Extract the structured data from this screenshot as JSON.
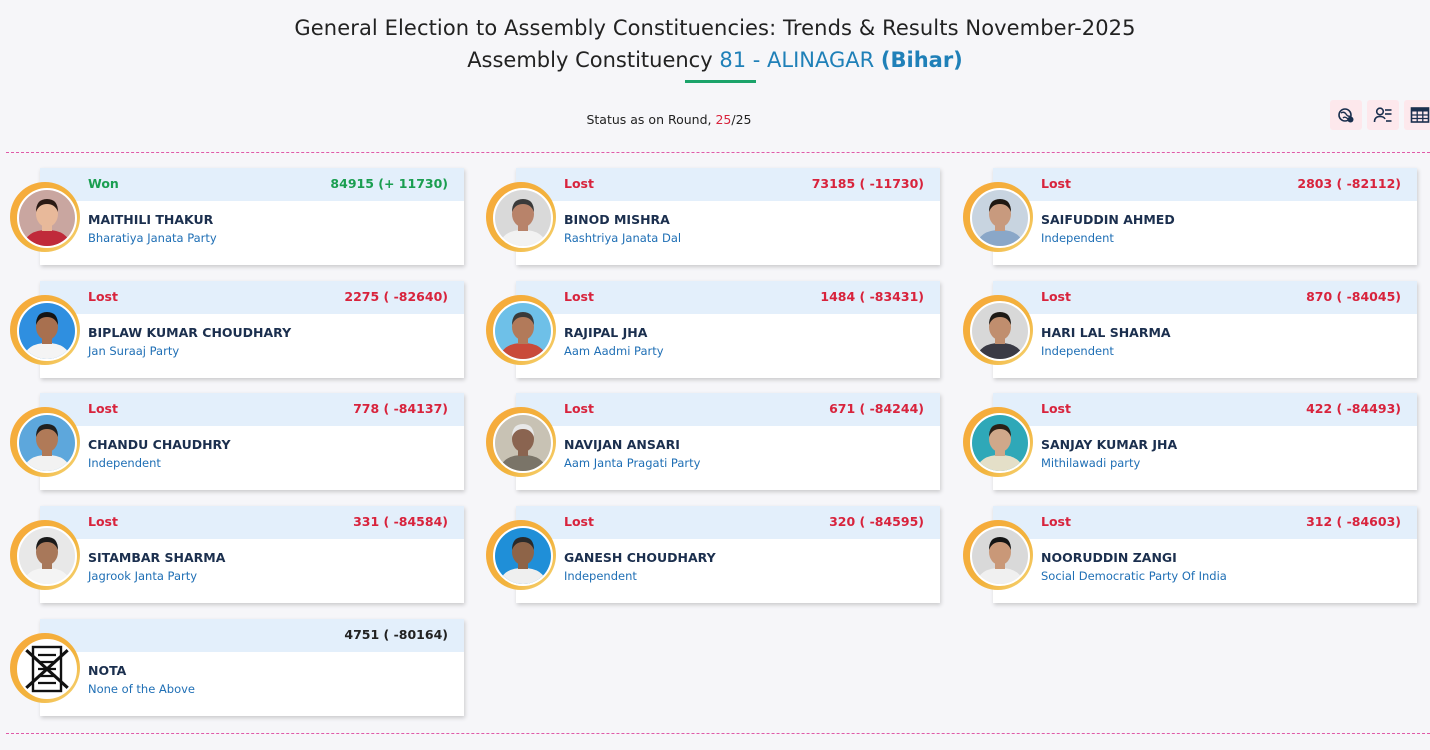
{
  "header": {
    "title": "General Election to Assembly Constituencies: Trends & Results November-2025",
    "subtitle_prefix": "Assembly Constituency",
    "ac_number": "81 -",
    "ac_name": "ALINAGAR",
    "state": "(Bihar)"
  },
  "status": {
    "label": "Status as on Round,",
    "current_round": "25",
    "separator": "/",
    "total_rounds": "25"
  },
  "toolbar": {
    "buttons": [
      {
        "icon": "map-view-icon"
      },
      {
        "icon": "candidate-list-icon"
      },
      {
        "icon": "table-view-icon"
      }
    ]
  },
  "candidates": [
    {
      "status": "Won",
      "votes": "84915 (+ 11730)",
      "name": "MAITHILI THAKUR",
      "party": "Bharatiya Janata Party",
      "bg": "#c9a6a0",
      "shirt": "#c02a3a",
      "skin": "#e8b99a",
      "hair": "#2a1a14"
    },
    {
      "status": "Lost",
      "votes": "73185 ( -11730)",
      "name": "BINOD MISHRA",
      "party": "Rashtriya Janata Dal",
      "bg": "#d9d9d9",
      "shirt": "#f2f2f2",
      "skin": "#b8836a",
      "hair": "#3a3a3a"
    },
    {
      "status": "Lost",
      "votes": "2803 ( -82112)",
      "name": "SAIFUDDIN AHMED",
      "party": "Independent",
      "bg": "#c8d4e0",
      "shirt": "#8aa7c8",
      "skin": "#c89a7e",
      "hair": "#1e1812"
    },
    {
      "status": "Lost",
      "votes": "2275 ( -82640)",
      "name": "BIPLAW KUMAR CHOUDHARY",
      "party": "Jan Suraaj Party",
      "bg": "#2f8fe0",
      "shirt": "#f4f4f4",
      "skin": "#a8704f",
      "hair": "#141414"
    },
    {
      "status": "Lost",
      "votes": "1484 ( -83431)",
      "name": "RAJIPAL JHA",
      "party": "Aam Aadmi Party",
      "bg": "#6ec0e8",
      "shirt": "#c94a3a",
      "skin": "#b27a5a",
      "hair": "#3a3a3a"
    },
    {
      "status": "Lost",
      "votes": "870 ( -84045)",
      "name": "HARI LAL SHARMA",
      "party": "Independent",
      "bg": "#d8d8d8",
      "shirt": "#3a3a44",
      "skin": "#c08e6e",
      "hair": "#1e1a16"
    },
    {
      "status": "Lost",
      "votes": "778 ( -84137)",
      "name": "CHANDU CHAUDHRY",
      "party": "Independent",
      "bg": "#5da7dc",
      "shirt": "#f2f2f2",
      "skin": "#b07a58",
      "hair": "#202020"
    },
    {
      "status": "Lost",
      "votes": "671 ( -84244)",
      "name": "NAVIJAN ANSARI",
      "party": "Aam Janta Pragati Party",
      "bg": "#c8c2b4",
      "shirt": "#7a7468",
      "skin": "#8a6450",
      "hair": "#e8e8e8"
    },
    {
      "status": "Lost",
      "votes": "422 ( -84493)",
      "name": "SANJAY KUMAR JHA",
      "party": "Mithilawadi party",
      "bg": "#2fa8b8",
      "shirt": "#e4dfc8",
      "skin": "#d0a88a",
      "hair": "#2a2018"
    },
    {
      "status": "Lost",
      "votes": "331 ( -84584)",
      "name": "SITAMBAR SHARMA",
      "party": "Jagrook Janta Party",
      "bg": "#e8e8e8",
      "shirt": "#f4f4f4",
      "skin": "#a8785a",
      "hair": "#1a1a1a"
    },
    {
      "status": "Lost",
      "votes": "320 ( -84595)",
      "name": "GANESH CHOUDHARY",
      "party": "Independent",
      "bg": "#1f8fd8",
      "shirt": "#efefef",
      "skin": "#8e6448",
      "hair": "#2a2a2a"
    },
    {
      "status": "Lost",
      "votes": "312 ( -84603)",
      "name": "NOORUDDIN ZANGI",
      "party": "Social Democratic Party Of India",
      "bg": "#d9d9d9",
      "shirt": "#f0f0f0",
      "skin": "#c99878",
      "hair": "#141414"
    },
    {
      "status": "",
      "votes": "4751 ( -80164)",
      "name": "NOTA",
      "party": "None of the Above",
      "nota": true
    }
  ],
  "colors": {
    "won": "#1a9e50",
    "lost": "#d8233c",
    "accent_blue": "#1f80b8",
    "card_header": "#e3effb",
    "divider": "#e05aa8"
  }
}
